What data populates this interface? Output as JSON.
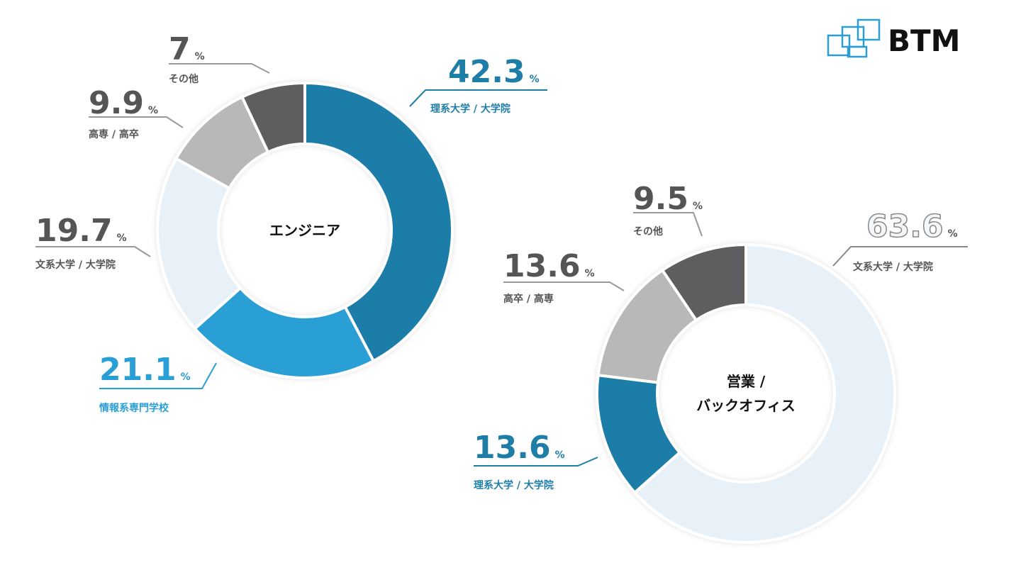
{
  "logo": "BTM",
  "chart_data": [
    {
      "type": "pie",
      "center_label": [
        "エンジニア"
      ],
      "unit": "%",
      "categories": [
        "理系大学 / 大学院",
        "情報系専門学校",
        "文系大学 / 大学院",
        "高専 / 高卒",
        "その他"
      ],
      "values": [
        42.3,
        21.1,
        19.7,
        9.9,
        7
      ],
      "colors": [
        "#1f7ea8",
        "#2a9fd6",
        "#e9f1f8",
        "#b8b8b8",
        "#5f5d60"
      ]
    },
    {
      "type": "pie",
      "center_label": [
        "営業 /",
        "バックオフィス"
      ],
      "unit": "%",
      "categories": [
        "文系大学 / 大学院",
        "理系大学 / 大学院",
        "高卒 / 高専",
        "その他"
      ],
      "values": [
        63.6,
        13.6,
        13.6,
        9.5
      ],
      "colors": [
        "#e9f1f8",
        "#1f7ea8",
        "#b8b8b8",
        "#5f5d60"
      ]
    }
  ]
}
